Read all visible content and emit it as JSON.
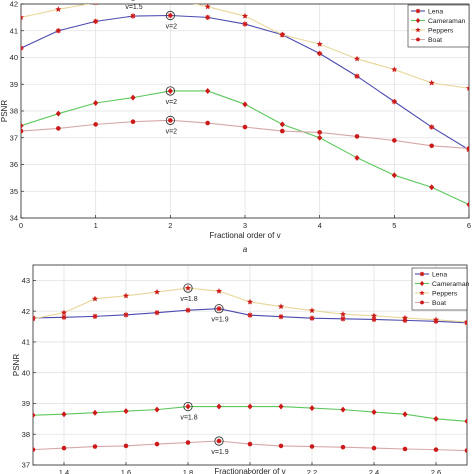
{
  "chart_data": [
    {
      "type": "line",
      "panel_label": "a",
      "xlabel": "Fractional order of v",
      "ylabel": "PSNR",
      "xlim": [
        0,
        6
      ],
      "ylim": [
        34,
        42
      ],
      "xticks": [
        0,
        1,
        2,
        3,
        4,
        5,
        6
      ],
      "yticks": [
        34,
        35,
        36,
        37,
        38,
        39,
        40,
        41,
        42
      ],
      "grid": true,
      "legend_position": "top-right",
      "x": [
        0,
        0.5,
        1,
        1.5,
        2,
        2.5,
        3,
        3.5,
        4,
        4.5,
        5,
        5.5,
        6
      ],
      "series": [
        {
          "name": "Lena",
          "color": "#4b4bb0",
          "marker": "asterisk",
          "values": [
            40.35,
            41.0,
            41.35,
            41.55,
            41.57,
            41.5,
            41.25,
            40.85,
            40.15,
            39.3,
            38.35,
            37.4,
            36.55
          ]
        },
        {
          "name": "Cameraman",
          "color": "#5cc85c",
          "marker": "diamond",
          "values": [
            37.45,
            37.9,
            38.3,
            38.5,
            38.75,
            38.75,
            38.25,
            37.5,
            37.0,
            36.25,
            35.6,
            35.15,
            34.5
          ]
        },
        {
          "name": "Peppers",
          "color": "#e8d79a",
          "marker": "star",
          "values": [
            41.5,
            41.8,
            42.05,
            42.3,
            42.2,
            41.9,
            41.55,
            40.85,
            40.5,
            39.95,
            39.55,
            39.05,
            38.85
          ]
        },
        {
          "name": "Boat",
          "color": "#d6a8a8",
          "marker": "dot",
          "values": [
            37.25,
            37.35,
            37.5,
            37.6,
            37.65,
            37.55,
            37.4,
            37.25,
            37.2,
            37.05,
            36.9,
            36.7,
            36.6
          ]
        }
      ],
      "annotations": [
        {
          "text": "v=1.5",
          "x": 1.5,
          "y": 42.3
        },
        {
          "text": "v=2",
          "x": 2,
          "y": 41.57
        },
        {
          "text": "v=2",
          "x": 2,
          "y": 38.75
        },
        {
          "text": "v=2",
          "x": 2,
          "y": 37.65
        }
      ]
    },
    {
      "type": "line",
      "xlabel": "Fractional order of v",
      "ylabel": "PSNR",
      "xlim": [
        1.3,
        2.7
      ],
      "ylim": [
        37,
        43.5
      ],
      "xticks": [
        1.4,
        1.6,
        1.8,
        2,
        2.2,
        2.4,
        2.6
      ],
      "xtick_labels": [
        "1.4",
        "1.6",
        "1.8",
        "2",
        "2.2",
        "2.4",
        "2.6"
      ],
      "yticks": [
        37,
        38,
        39,
        40,
        41,
        42,
        43
      ],
      "grid": true,
      "legend_position": "top-right",
      "x": [
        1.3,
        1.4,
        1.5,
        1.6,
        1.7,
        1.8,
        1.9,
        2.0,
        2.1,
        2.2,
        2.3,
        2.4,
        2.5,
        2.6,
        2.7
      ],
      "series": [
        {
          "name": "Lena",
          "color": "#4b4bb0",
          "marker": "asterisk",
          "values": [
            41.78,
            41.8,
            41.83,
            41.88,
            41.95,
            42.03,
            42.08,
            41.87,
            41.82,
            41.77,
            41.75,
            41.73,
            41.7,
            41.67,
            41.62
          ]
        },
        {
          "name": "Cameraman",
          "color": "#5cc85c",
          "marker": "diamond",
          "values": [
            38.62,
            38.65,
            38.7,
            38.75,
            38.8,
            38.9,
            38.9,
            38.9,
            38.9,
            38.85,
            38.8,
            38.72,
            38.65,
            38.5,
            38.42
          ]
        },
        {
          "name": "Peppers",
          "color": "#e8d79a",
          "marker": "star",
          "values": [
            41.75,
            41.95,
            42.4,
            42.5,
            42.62,
            42.75,
            42.65,
            42.3,
            42.15,
            42.02,
            41.9,
            41.85,
            41.78,
            41.72,
            41.65
          ]
        },
        {
          "name": "Boat",
          "color": "#d6a8a8",
          "marker": "dot",
          "values": [
            37.5,
            37.55,
            37.6,
            37.62,
            37.68,
            37.73,
            37.78,
            37.68,
            37.62,
            37.6,
            37.58,
            37.55,
            37.52,
            37.5,
            37.47
          ]
        }
      ],
      "annotations": [
        {
          "text": "v=1.8",
          "x": 1.8,
          "y": 42.75
        },
        {
          "text": "v=1.9",
          "x": 1.9,
          "y": 42.08
        },
        {
          "text": "v=1.8",
          "x": 1.8,
          "y": 38.9
        },
        {
          "text": "v=1.9",
          "x": 1.9,
          "y": 37.78
        }
      ]
    }
  ]
}
